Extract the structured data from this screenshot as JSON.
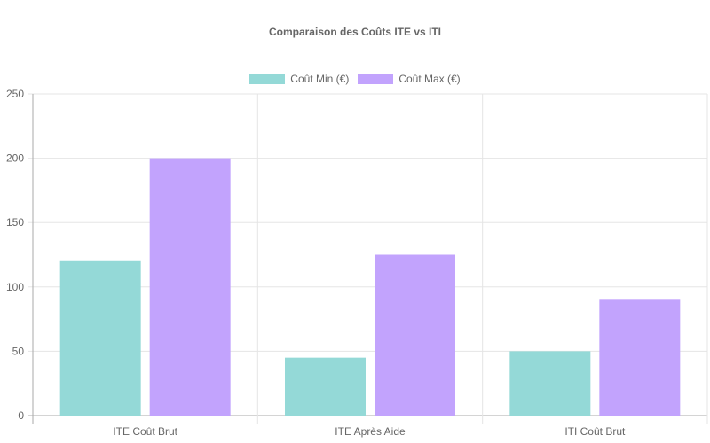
{
  "chart_data": {
    "type": "bar",
    "title": "Comparaison des Coûts ITE vs ITI",
    "xlabel": "",
    "ylabel": "",
    "ylim": [
      0,
      250
    ],
    "yticks": [
      0,
      50,
      100,
      150,
      200,
      250
    ],
    "grid": true,
    "legend_position": "top",
    "categories": [
      "ITE Coût Brut",
      "ITE Après Aide",
      "ITI Coût Brut"
    ],
    "series": [
      {
        "name": "Coût Min (€)",
        "values": [
          120,
          45,
          50
        ],
        "color": "#94d9d7"
      },
      {
        "name": "Coût Max (€)",
        "values": [
          200,
          125,
          90
        ],
        "color": "#c2a3fd"
      }
    ]
  },
  "title": "Comparaison des Coûts ITE vs ITI",
  "legend": [
    {
      "label": "Coût Min (€)",
      "color": "#94d9d7"
    },
    {
      "label": "Coût Max (€)",
      "color": "#c2a3fd"
    }
  ]
}
